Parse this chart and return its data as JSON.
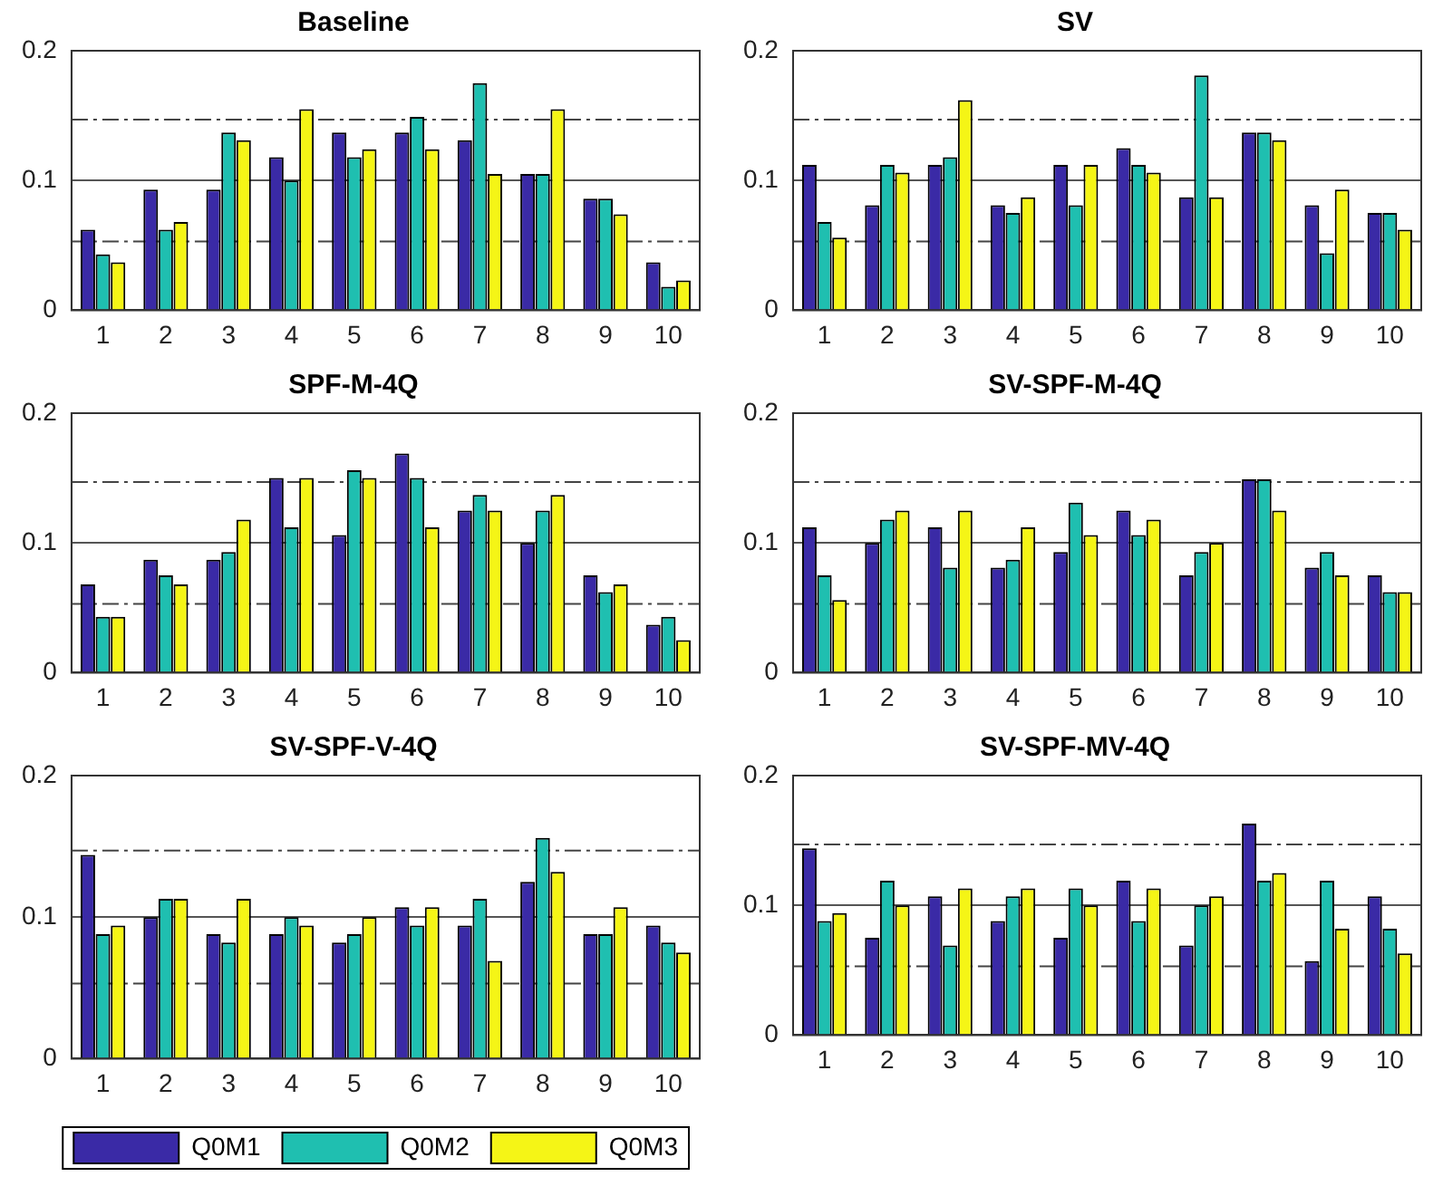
{
  "chart_data": [
    {
      "type": "bar",
      "title": "Baseline",
      "categories": [
        "1",
        "2",
        "3",
        "4",
        "5",
        "6",
        "7",
        "8",
        "9",
        "10"
      ],
      "series": [
        {
          "color": "#3a2aa6",
          "values": [
            0.062,
            0.093,
            0.093,
            0.118,
            0.137,
            0.137,
            0.131,
            0.105,
            0.086,
            0.037
          ]
        },
        {
          "color": "#1fbfb0",
          "values": [
            0.043,
            0.062,
            0.137,
            0.1,
            0.118,
            0.149,
            0.175,
            0.105,
            0.086,
            0.018
          ]
        },
        {
          "color": "#f5f516",
          "values": [
            0.037,
            0.068,
            0.131,
            0.155,
            0.124,
            0.124,
            0.105,
            0.155,
            0.074,
            0.023
          ]
        }
      ],
      "ylim": [
        0,
        0.2
      ],
      "yticks": [
        0,
        0.1,
        0.2
      ],
      "grid": "y",
      "ref_lines": [
        {
          "axis": "y",
          "value": 0.147,
          "color": "#444444"
        },
        {
          "axis": "y",
          "value": 0.053,
          "color": "#444444"
        }
      ]
    },
    {
      "type": "bar",
      "title": "SV",
      "categories": [
        "1",
        "2",
        "3",
        "4",
        "5",
        "6",
        "7",
        "8",
        "9",
        "10"
      ],
      "series": [
        {
          "color": "#3a2aa6",
          "values": [
            0.112,
            0.081,
            0.112,
            0.081,
            0.112,
            0.125,
            0.087,
            0.137,
            0.081,
            0.075
          ]
        },
        {
          "color": "#1fbfb0",
          "values": [
            0.068,
            0.112,
            0.118,
            0.075,
            0.081,
            0.112,
            0.181,
            0.137,
            0.044,
            0.075
          ]
        },
        {
          "color": "#f5f516",
          "values": [
            0.056,
            0.106,
            0.162,
            0.087,
            0.112,
            0.106,
            0.087,
            0.131,
            0.093,
            0.062
          ]
        }
      ],
      "ylim": [
        0,
        0.2
      ],
      "yticks": [
        0,
        0.1,
        0.2
      ],
      "grid": "y",
      "ref_lines": [
        {
          "axis": "y",
          "value": 0.147,
          "color": "#444444"
        },
        {
          "axis": "y",
          "value": 0.053,
          "color": "#444444"
        }
      ]
    },
    {
      "type": "bar",
      "title": "SPF-M-4Q",
      "categories": [
        "1",
        "2",
        "3",
        "4",
        "5",
        "6",
        "7",
        "8",
        "9",
        "10"
      ],
      "series": [
        {
          "color": "#3a2aa6",
          "values": [
            0.068,
            0.087,
            0.087,
            0.15,
            0.106,
            0.169,
            0.125,
            0.1,
            0.075,
            0.037
          ]
        },
        {
          "color": "#1fbfb0",
          "values": [
            0.043,
            0.075,
            0.093,
            0.112,
            0.156,
            0.15,
            0.137,
            0.125,
            0.062,
            0.043
          ]
        },
        {
          "color": "#f5f516",
          "values": [
            0.043,
            0.068,
            0.118,
            0.15,
            0.15,
            0.112,
            0.125,
            0.137,
            0.068,
            0.025
          ]
        }
      ],
      "ylim": [
        0,
        0.2
      ],
      "yticks": [
        0,
        0.1,
        0.2
      ],
      "grid": "y",
      "ref_lines": [
        {
          "axis": "y",
          "value": 0.147,
          "color": "#444444"
        },
        {
          "axis": "y",
          "value": 0.053,
          "color": "#444444"
        }
      ]
    },
    {
      "type": "bar",
      "title": "SV-SPF-M-4Q",
      "categories": [
        "1",
        "2",
        "3",
        "4",
        "5",
        "6",
        "7",
        "8",
        "9",
        "10"
      ],
      "series": [
        {
          "color": "#3a2aa6",
          "values": [
            0.112,
            0.1,
            0.112,
            0.081,
            0.093,
            0.125,
            0.075,
            0.149,
            0.081,
            0.075
          ]
        },
        {
          "color": "#1fbfb0",
          "values": [
            0.075,
            0.118,
            0.081,
            0.087,
            0.131,
            0.106,
            0.093,
            0.149,
            0.093,
            0.062
          ]
        },
        {
          "color": "#f5f516",
          "values": [
            0.056,
            0.125,
            0.125,
            0.112,
            0.106,
            0.118,
            0.1,
            0.125,
            0.075,
            0.062
          ]
        }
      ],
      "ylim": [
        0,
        0.2
      ],
      "yticks": [
        0,
        0.1,
        0.2
      ],
      "grid": "y",
      "ref_lines": [
        {
          "axis": "y",
          "value": 0.147,
          "color": "#444444"
        },
        {
          "axis": "y",
          "value": 0.053,
          "color": "#444444"
        }
      ]
    },
    {
      "type": "bar",
      "title": "SV-SPF-V-4Q",
      "categories": [
        "1",
        "2",
        "3",
        "4",
        "5",
        "6",
        "7",
        "8",
        "9",
        "10"
      ],
      "series": [
        {
          "name": "Q0M1",
          "color": "#3a2aa6",
          "values": [
            0.144,
            0.1,
            0.088,
            0.088,
            0.082,
            0.107,
            0.094,
            0.125,
            0.088,
            0.094
          ]
        },
        {
          "name": "Q0M2",
          "color": "#1fbfb0",
          "values": [
            0.088,
            0.113,
            0.082,
            0.1,
            0.088,
            0.094,
            0.113,
            0.156,
            0.088,
            0.082
          ]
        },
        {
          "name": "Q0M3",
          "color": "#f5f516",
          "values": [
            0.094,
            0.113,
            0.113,
            0.094,
            0.1,
            0.107,
            0.069,
            0.132,
            0.107,
            0.075
          ]
        }
      ],
      "ylim": [
        0,
        0.2
      ],
      "yticks": [
        0,
        0.1,
        0.2
      ],
      "grid": "y",
      "legend": "bottom",
      "ref_lines": [
        {
          "axis": "y",
          "value": 0.147,
          "color": "#444444"
        },
        {
          "axis": "y",
          "value": 0.053,
          "color": "#444444"
        }
      ]
    },
    {
      "type": "bar",
      "title": "SV-SPF-MV-4Q",
      "categories": [
        "1",
        "2",
        "3",
        "4",
        "5",
        "6",
        "7",
        "8",
        "9",
        "10"
      ],
      "series": [
        {
          "color": "#3a2aa6",
          "values": [
            0.144,
            0.075,
            0.107,
            0.088,
            0.075,
            0.119,
            0.069,
            0.163,
            0.057,
            0.107
          ]
        },
        {
          "color": "#1fbfb0",
          "values": [
            0.088,
            0.119,
            0.069,
            0.107,
            0.113,
            0.088,
            0.1,
            0.119,
            0.119,
            0.082
          ]
        },
        {
          "color": "#f5f516",
          "values": [
            0.094,
            0.1,
            0.113,
            0.113,
            0.1,
            0.113,
            0.107,
            0.125,
            0.082,
            0.063
          ]
        }
      ],
      "ylim": [
        0,
        0.2
      ],
      "yticks": [
        0,
        0.1,
        0.2
      ],
      "grid": "y",
      "ref_lines": [
        {
          "axis": "y",
          "value": 0.147,
          "color": "#444444"
        },
        {
          "axis": "y",
          "value": 0.053,
          "color": "#444444"
        }
      ]
    }
  ]
}
